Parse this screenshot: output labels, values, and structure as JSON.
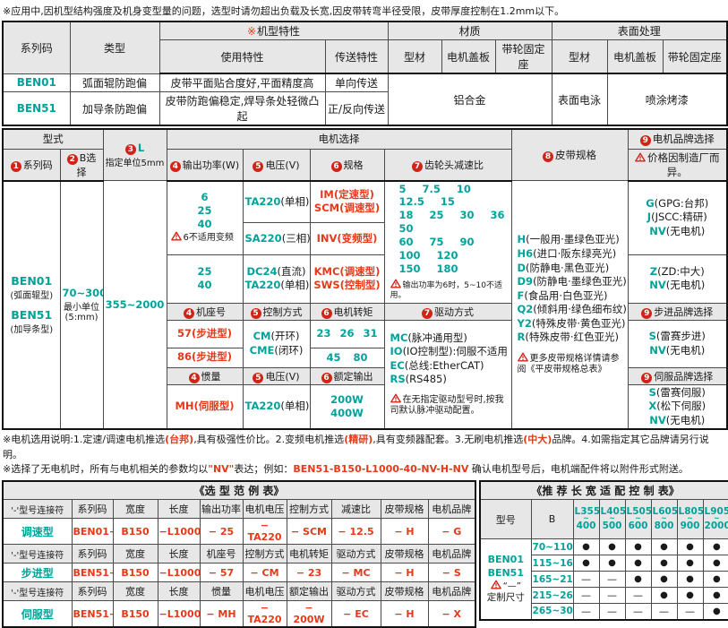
{
  "colors": {
    "teal": "#00a29a",
    "red": "#e23a1b",
    "circle_red": "#cf2417",
    "header_bg": "#e7e7e7"
  },
  "top_note": "※应用中,因机型结构强度及机身变型量的问题，选型时请勿超出负载及长宽,因皮带转弯半径受限，皮带厚度控制在1.2mm以下。",
  "feature_table": {
    "star": "※",
    "col_series": "系列码",
    "col_type": "类型",
    "col_feature": "机型特性",
    "col_usage": "使用特性",
    "col_transfer": "传送特性",
    "col_material": "材质",
    "col_surface": "表面处理",
    "col_profile": "型材",
    "col_cover": "电机盖板",
    "col_pulley": "带轮固定座",
    "col_profile2": "型材",
    "col_cover2": "电机盖板",
    "col_pulley2": "带轮固定座",
    "rows": [
      {
        "series": "BEN01",
        "type": "弧面辊防跑偏",
        "usage": "皮带平面贴合度好,平面精度高",
        "transfer": "单向传送"
      },
      {
        "series": "BEN51",
        "type": "加导条防跑偏",
        "usage": "皮带防跑偏稳定,焊导条处轻微凸起",
        "transfer": "正/反向传送"
      }
    ],
    "material_value": "铝合金",
    "surface_profile": "表面电泳",
    "surface_paint": "喷涂烤漆"
  },
  "sel": {
    "h_model": "型式",
    "h_l": {
      "n": "3",
      "t": "L"
    },
    "h_l_sub": "指定单位5mm",
    "h_motor_group": "电机选择",
    "h_series": {
      "n": "1",
      "t": "系列码"
    },
    "h_b": {
      "n": "2",
      "t": "B选择"
    },
    "h_power": {
      "n": "4",
      "t": "输出功率(W)"
    },
    "h_volt": {
      "n": "5",
      "t": "电压(V)"
    },
    "h_spec": {
      "n": "6",
      "t": "规格"
    },
    "h_gear": {
      "n": "7",
      "t": "齿轮头减速比"
    },
    "h_belt": {
      "n": "8",
      "t": "皮带规格"
    },
    "h_brand": {
      "n": "9",
      "t": "电机品牌选择"
    },
    "brand_note": "价格因制造厂而异。",
    "series1": "BEN01",
    "series1_desc": "(弧面辊型)",
    "series2": "BEN51",
    "series2_desc": "(加导条型)",
    "b_value": "70~300",
    "b_desc1": "最小单位",
    "b_desc2": "(5:mm)",
    "l_value": "355~2000",
    "power1_nums": [
      "6",
      "25",
      "40"
    ],
    "power1_warn": "6不适用变频",
    "volt1": [
      {
        "c": "TA220",
        "d": "(单相)"
      }
    ],
    "spec1": [
      {
        "c": "IM",
        "d": "(定速型)"
      },
      {
        "c": "SCM",
        "d": "(调速型)"
      }
    ],
    "volt2": [
      {
        "c": "SA220",
        "d": "(三相)"
      }
    ],
    "spec2": [
      {
        "c": "INV",
        "d": "(变频型)"
      }
    ],
    "power3_nums": [
      "25",
      "40"
    ],
    "volt3": [
      {
        "c": "DC24",
        "d": "(直流)"
      },
      {
        "c": "TA220",
        "d": "(单相)"
      }
    ],
    "spec3": [
      {
        "c": "KMC",
        "d": "(调速型)"
      },
      {
        "c": "SWS",
        "d": "(控制型)"
      }
    ],
    "gear_lines": [
      "5 7.5 10 12.5 15",
      "18 25 30 36 50",
      "60 75 90 100 120",
      "150 180"
    ],
    "gear_warn": "输出功率为6时，5~10不适用。",
    "sub_base": {
      "n": "4",
      "t": "机座号"
    },
    "sub_ctrl": {
      "n": "5",
      "t": "控制方式"
    },
    "sub_torque": {
      "n": "6",
      "t": "电机转矩"
    },
    "sub_drive": {
      "n": "7",
      "t": "驱动方式"
    },
    "h_step_brand": {
      "n": "9",
      "t": "步进品牌选择"
    },
    "base57": [
      {
        "c": "57",
        "d": "(步进型)"
      }
    ],
    "ctrl": [
      {
        "c": "CM",
        "d": "(开环)"
      },
      {
        "c": "CME",
        "d": "(闭环)"
      }
    ],
    "torque1_nums": [
      "23 26 31"
    ],
    "base86": [
      {
        "c": "86",
        "d": "(步进型)"
      }
    ],
    "torque2_nums": [
      "45 80"
    ],
    "drive_items": [
      {
        "c": "MC",
        "d": "(脉冲通用型)"
      },
      {
        "c": "IO",
        "d": "(IO控制型):伺服不适用"
      },
      {
        "c": "EC",
        "d": "(总线:EtherCAT)"
      },
      {
        "c": "RS",
        "d": "(RS485)"
      }
    ],
    "drive_warn": "在无指定驱动型号时,按我司默认脉冲驱动配置。",
    "sub_inertia": {
      "n": "4",
      "t": "惯量"
    },
    "sub_volt2": {
      "n": "5",
      "t": "电压(V)"
    },
    "sub_rated": {
      "n": "6",
      "t": "额定输出"
    },
    "h_servo_brand": {
      "n": "9",
      "t": "伺服品牌选择"
    },
    "inertia": [
      {
        "c": "MH",
        "d": "(伺服型)"
      }
    ],
    "volt4": [
      {
        "c": "TA220",
        "d": "(单相)"
      }
    ],
    "rated_nums": [
      "200W",
      "400W"
    ],
    "belt_items": [
      {
        "c": "H",
        "d": "(一般用·墨绿色亚光)"
      },
      {
        "c": "H6",
        "d": "(进口·阪东绿亮光)"
      },
      {
        "c": "D",
        "d": "(防静电·黑色亚光)"
      },
      {
        "c": "D9",
        "d": "(防静电·墨绿色亚光)"
      },
      {
        "c": "F",
        "d": "(食品用·白色亚光)"
      },
      {
        "c": "Q2",
        "d": "(倾斜用·绿色细布纹)"
      },
      {
        "c": "Y2",
        "d": "(特殊皮带·黄色亚光)"
      },
      {
        "c": "R",
        "d": "(特殊皮带·红色亚光)"
      }
    ],
    "belt_warn": "更多皮带规格详情请参阅《平皮带规格总表》",
    "brand1": [
      {
        "c": "G",
        "d": "(GPG:台邦)"
      },
      {
        "c": "J",
        "d": "(JSCC:精研)"
      },
      {
        "c": "NV",
        "d": "(无电机)"
      }
    ],
    "brand2": [
      {
        "c": "Z",
        "d": "(ZD:中大)"
      },
      {
        "c": "NV",
        "d": "(无电机)"
      }
    ],
    "brand3": [
      {
        "c": "S",
        "d": "(雷赛步进)"
      },
      {
        "c": "NV",
        "d": "(无电机)"
      }
    ],
    "brand4": [
      {
        "c": "S",
        "d": "(雷赛伺服)"
      },
      {
        "c": "X",
        "d": "(松下伺服)"
      },
      {
        "c": "NV",
        "d": "(无电机)"
      }
    ]
  },
  "notes": [
    {
      "segs": [
        {
          "t": "※电机选用说明:1.定速/调速电机推选"
        },
        {
          "t": "(台邦)",
          "red": true
        },
        {
          "t": ",具有极强性价比。2.变频电机推选"
        },
        {
          "t": "(精研)",
          "red": true
        },
        {
          "t": ",具有变频器配套。3.无刷电机推选"
        },
        {
          "t": "(中大)",
          "red": true
        },
        {
          "t": "品牌。4.如需指定其它品牌请另行说明。"
        }
      ]
    },
    {
      "segs": [
        {
          "t": "※选择了无电机时，所有与电机相关的参数均以"
        },
        {
          "t": "\"NV\"",
          "red": true
        },
        {
          "t": "表达；例如："
        },
        {
          "t": "BEN51-B150-L1000-40-NV-H-NV",
          "red": true
        },
        {
          "t": " 确认电机型号后，电机端配件将以附件形式附送。"
        }
      ]
    }
  ],
  "example_table": {
    "title": "《选 型 范 例 表》",
    "connector_label": "'-'型号连接符",
    "groups": [
      {
        "label": "调速型",
        "headers": [
          "系列码",
          "宽度",
          "长度",
          "输出功率",
          "电机电压",
          "控制方式",
          "减速比",
          "皮带规格",
          "电机品牌"
        ],
        "values": [
          "BEN01−",
          "B150",
          "−L1000",
          "− 25",
          "− TA220",
          "− SCM",
          "− 12.5",
          "− H",
          "− G"
        ]
      },
      {
        "label": "步进型",
        "headers": [
          "系列码",
          "宽度",
          "长度",
          "机座号",
          "控制方式",
          "电机转矩",
          "驱动方式",
          "皮带规格",
          "电机品牌"
        ],
        "values": [
          "BEN51−",
          "B150",
          "−L1000",
          "− 57",
          "− CM",
          "− 23",
          "− MC",
          "− H",
          "− S"
        ]
      },
      {
        "label": "伺服型",
        "headers": [
          "系列码",
          "宽度",
          "长度",
          "惯量",
          "电机电压",
          "额定输出",
          "驱动方式",
          "皮带规格",
          "电机品牌"
        ],
        "values": [
          "BEN51−",
          "B150",
          "−L1000",
          "− MH",
          "− TA220",
          "− 200W",
          "− EC",
          "− H",
          "− X"
        ]
      }
    ]
  },
  "recommend": {
    "title": "《推 荐 长 宽 适 配 控 制 表》",
    "col_model": "型号",
    "col_b": "B",
    "l_cols": [
      {
        "top": "L355",
        "bot": "400"
      },
      {
        "top": "L405",
        "bot": "500"
      },
      {
        "top": "L505",
        "bot": "600"
      },
      {
        "top": "L605",
        "bot": "800"
      },
      {
        "top": "L805",
        "bot": "900"
      },
      {
        "top": "L905",
        "bot": "2000"
      }
    ],
    "model1": "BEN01",
    "model2": "BEN51",
    "model_warn": "“—”",
    "model_note": "定制尺寸",
    "dot_char": "●",
    "dash_char": "—",
    "rows": [
      {
        "b": "70~110",
        "cells": [
          "dot",
          "dot",
          "dot",
          "dot",
          "dot",
          "dot"
        ]
      },
      {
        "b": "115~160",
        "cells": [
          "dot",
          "dot",
          "dot",
          "dot",
          "dot",
          "dot"
        ]
      },
      {
        "b": "165~210",
        "cells": [
          "dash",
          "dash",
          "dot",
          "dot",
          "dot",
          "dot"
        ]
      },
      {
        "b": "215~260",
        "cells": [
          "dash",
          "dash",
          "dash",
          "dot",
          "dot",
          "dot"
        ]
      },
      {
        "b": "265~300",
        "cells": [
          "dash",
          "dash",
          "dash",
          "dash",
          "dash",
          "dot"
        ]
      }
    ]
  }
}
